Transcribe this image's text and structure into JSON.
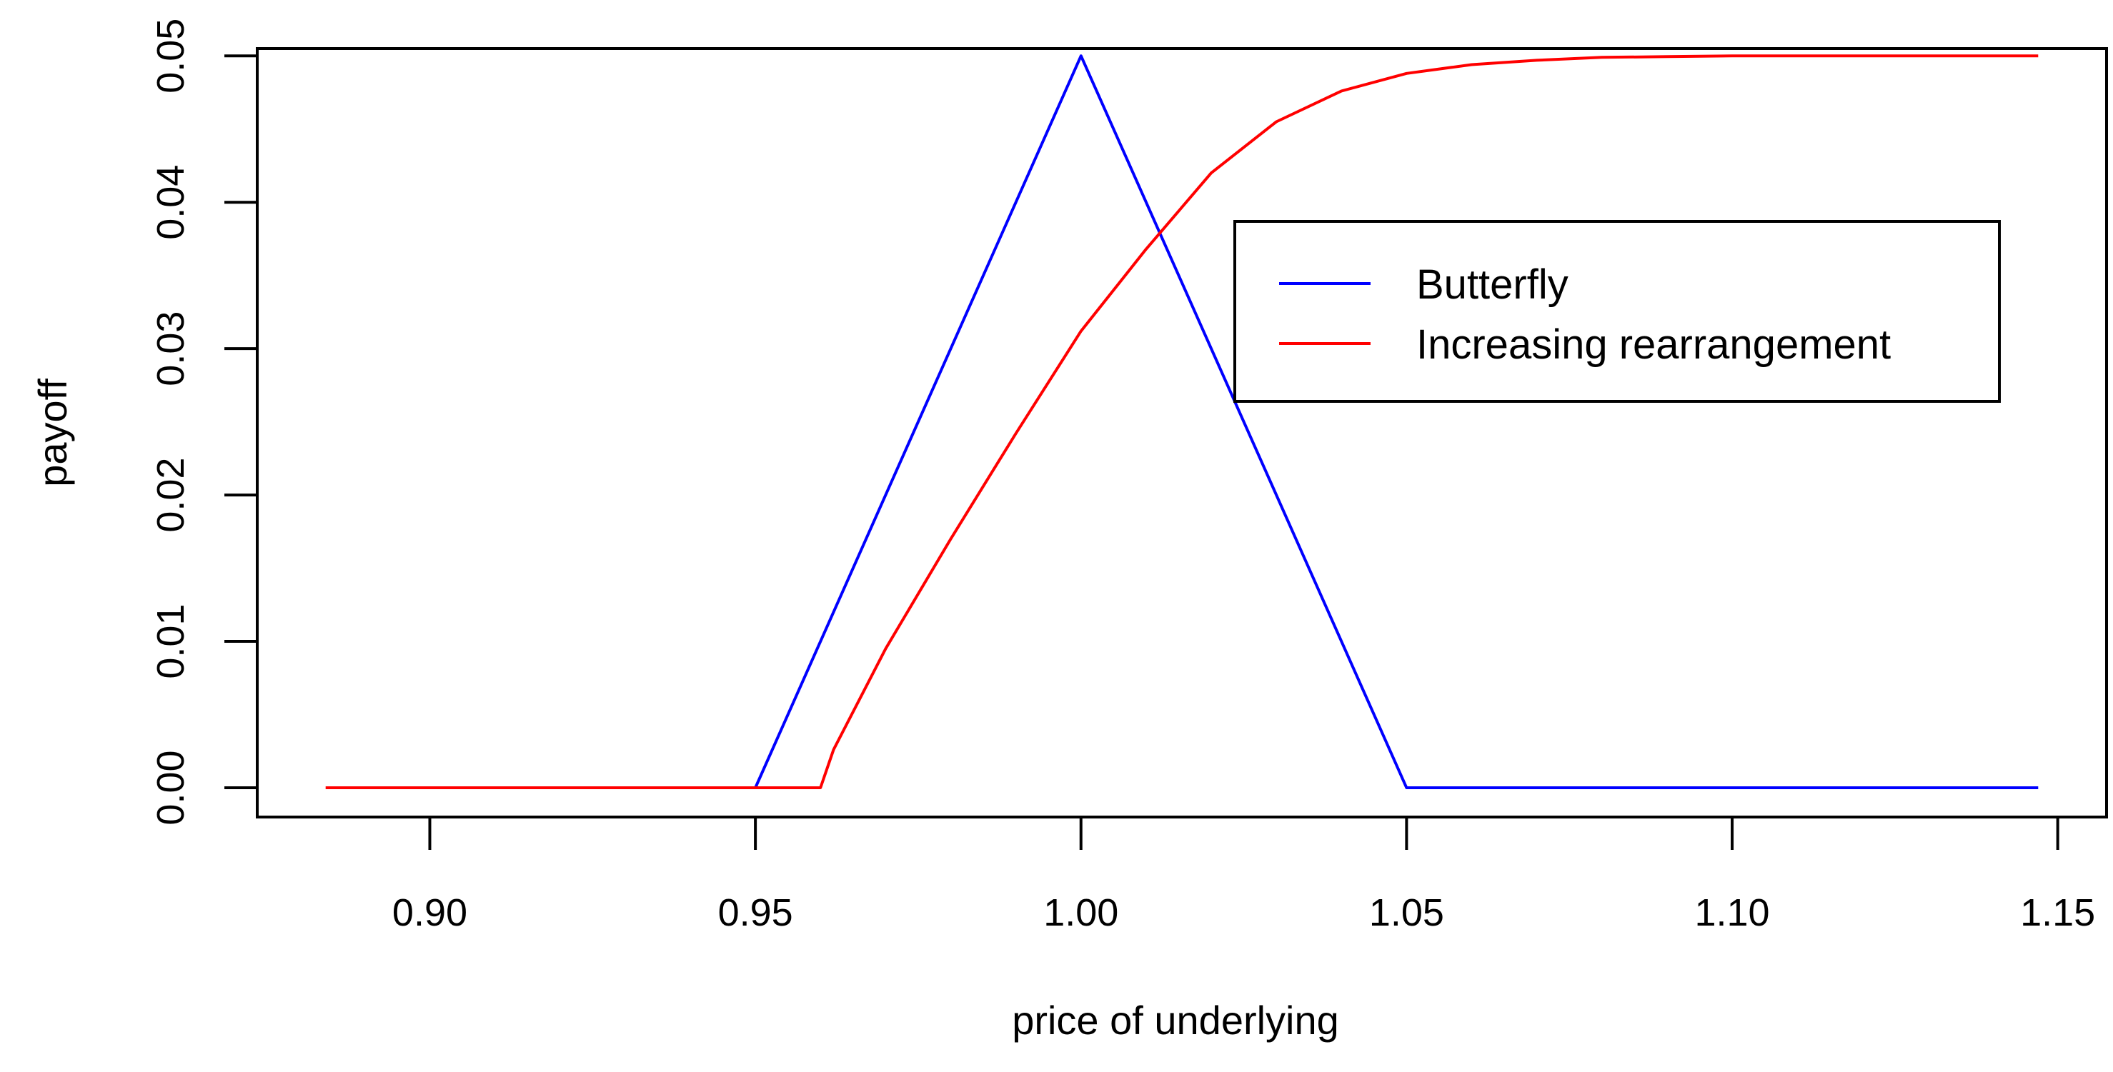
{
  "chart_data": {
    "type": "line",
    "title": "",
    "xlabel": "price of underlying",
    "ylabel": "payoff",
    "xlim": [
      0.8735,
      1.1575
    ],
    "ylim": [
      -0.002,
      0.0505
    ],
    "x_ticks": [
      0.9,
      0.95,
      1.0,
      1.05,
      1.1,
      1.15
    ],
    "x_tick_labels": [
      "0.90",
      "0.95",
      "1.00",
      "1.05",
      "1.10",
      "1.15"
    ],
    "y_ticks": [
      0.0,
      0.01,
      0.02,
      0.03,
      0.04,
      0.05
    ],
    "y_tick_labels": [
      "0.00",
      "0.01",
      "0.02",
      "0.03",
      "0.04",
      "0.05"
    ],
    "grid": false,
    "legend_position": "top-right",
    "series": [
      {
        "name": "Butterfly",
        "color": "#0000ff",
        "x": [
          0.95,
          1.0,
          1.05,
          1.147
        ],
        "y": [
          0.0,
          0.05,
          0.0,
          0.0
        ]
      },
      {
        "name": "Increasing rearrangement",
        "color": "#ff0000",
        "x": [
          0.884,
          0.95,
          0.96,
          0.962,
          0.97,
          0.98,
          0.99,
          1.0,
          1.01,
          1.02,
          1.03,
          1.04,
          1.05,
          1.06,
          1.07,
          1.08,
          1.09,
          1.1,
          1.147
        ],
        "y": [
          0.0,
          0.0,
          0.0,
          0.0026,
          0.0095,
          0.017,
          0.0242,
          0.0312,
          0.0368,
          0.042,
          0.0455,
          0.0476,
          0.0488,
          0.0494,
          0.0497,
          0.0499,
          0.04995,
          0.05,
          0.05
        ]
      }
    ]
  }
}
